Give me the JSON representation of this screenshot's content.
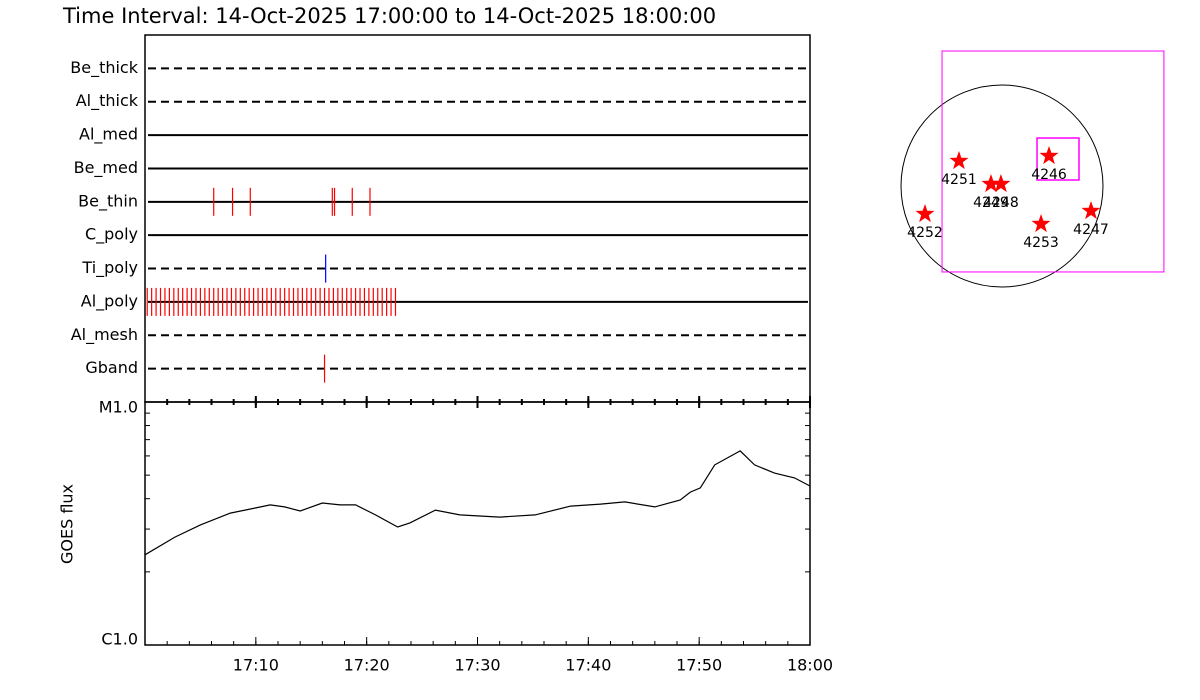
{
  "chart_data": [
    {
      "type": "event",
      "title": "Time Interval: 14-Oct-2025 17:00:00 to 14-Oct-2025 18:00:00",
      "xlim": [
        0,
        60
      ],
      "rows": [
        {
          "name": "Be_thick",
          "style": "dashed",
          "color": "#ff0000",
          "events": []
        },
        {
          "name": "Al_thick",
          "style": "dashed",
          "color": "#ff0000",
          "events": []
        },
        {
          "name": "Al_med",
          "style": "solid",
          "color": "#ff0000",
          "events": []
        },
        {
          "name": "Be_med",
          "style": "solid",
          "color": "#ff0000",
          "events": []
        },
        {
          "name": "Be_thin",
          "style": "solid",
          "color": "#ff0000",
          "events": [
            6.2,
            7.9,
            9.5,
            16.9,
            17.1,
            18.7,
            20.3
          ]
        },
        {
          "name": "C_poly",
          "style": "solid",
          "color": "#ff0000",
          "events": []
        },
        {
          "name": "Ti_poly",
          "style": "dashed",
          "color": "#0000ff",
          "events": [
            16.3
          ]
        },
        {
          "name": "Al_poly",
          "style": "solid",
          "color": "#ff0000",
          "events": [
            0.2,
            0.6,
            1.0,
            1.4,
            1.8,
            2.2,
            2.6,
            3.0,
            3.4,
            3.8,
            4.2,
            4.6,
            5.0,
            5.4,
            5.8,
            6.2,
            6.6,
            7.0,
            7.4,
            7.8,
            8.2,
            8.6,
            9.0,
            9.4,
            9.8,
            10.2,
            10.6,
            11.0,
            11.4,
            11.8,
            12.2,
            12.6,
            13.0,
            13.4,
            13.8,
            14.2,
            14.6,
            15.0,
            15.4,
            15.8,
            16.2,
            16.6,
            17.0,
            17.4,
            17.8,
            18.2,
            18.6,
            19.0,
            19.4,
            19.8,
            20.2,
            20.6,
            21.0,
            21.4,
            21.8,
            22.2,
            22.6
          ]
        },
        {
          "name": "Al_mesh",
          "style": "dashed",
          "color": "#ff0000",
          "events": []
        },
        {
          "name": "Gband",
          "style": "dashed",
          "color": "#ff0000",
          "events": [
            16.2
          ]
        }
      ]
    },
    {
      "type": "line",
      "ylabel": "GOES flux",
      "log_scale": true,
      "color": "#000000",
      "xlim": [
        0,
        60
      ],
      "xticks": [
        {
          "value": 10,
          "label": "17:10"
        },
        {
          "value": 20,
          "label": "17:20"
        },
        {
          "value": 30,
          "label": "17:30"
        },
        {
          "value": 40,
          "label": "17:40"
        },
        {
          "value": 50,
          "label": "17:50"
        },
        {
          "value": 60,
          "label": "18:00"
        }
      ],
      "ylim": [
        1e-06,
        1e-05
      ],
      "yticks": [
        {
          "value": 1e-06,
          "label": "C1.0"
        },
        {
          "value": 1e-05,
          "label": "M1.0"
        }
      ],
      "x": [
        0,
        2.7,
        5,
        7.7,
        9.9,
        11.3,
        12.6,
        14,
        16,
        17.6,
        19,
        20.8,
        22.8,
        23.9,
        26.2,
        28.4,
        32,
        35.2,
        38.4,
        41.1,
        43.3,
        46,
        48.3,
        49.2,
        50.1,
        51.4,
        53.7,
        55,
        56.8,
        58.6,
        60
      ],
      "values": [
        2.35e-06,
        2.78e-06,
        3.12e-06,
        3.49e-06,
        3.66e-06,
        3.77e-06,
        3.7e-06,
        3.56e-06,
        3.84e-06,
        3.77e-06,
        3.77e-06,
        3.43e-06,
        3.06e-06,
        3.18e-06,
        3.59e-06,
        3.43e-06,
        3.36e-06,
        3.43e-06,
        3.73e-06,
        3.8e-06,
        3.88e-06,
        3.7e-06,
        3.95e-06,
        4.26e-06,
        4.43e-06,
        5.51e-06,
        6.29e-06,
        5.51e-06,
        5.1e-06,
        4.87e-06,
        4.51e-06
      ]
    },
    {
      "type": "map",
      "rsun": 960,
      "box_color": "#ff00ff",
      "boxes": [
        {
          "xlim": [
            -570,
            1539
          ],
          "ylim": [
            -817,
            1283
          ]
        },
        {
          "xlim": [
            333,
            732
          ],
          "ylim": [
            57,
            456
          ]
        }
      ],
      "regions": [
        {
          "name": "4251",
          "x": -409,
          "y": 238,
          "color": "#ff0000"
        },
        {
          "name": "4246",
          "x": 447,
          "y": 285,
          "color": "#ff0000"
        },
        {
          "name": "4249",
          "x": -105,
          "y": 19,
          "color": "#ff0000"
        },
        {
          "name": "4248",
          "x": -10,
          "y": 19,
          "color": "#ff0000"
        },
        {
          "name": "4252",
          "x": -732,
          "y": -266,
          "color": "#ff0000"
        },
        {
          "name": "4253",
          "x": 371,
          "y": -361,
          "color": "#ff0000"
        },
        {
          "name": "4247",
          "x": 846,
          "y": -238,
          "color": "#ff0000"
        }
      ]
    }
  ]
}
